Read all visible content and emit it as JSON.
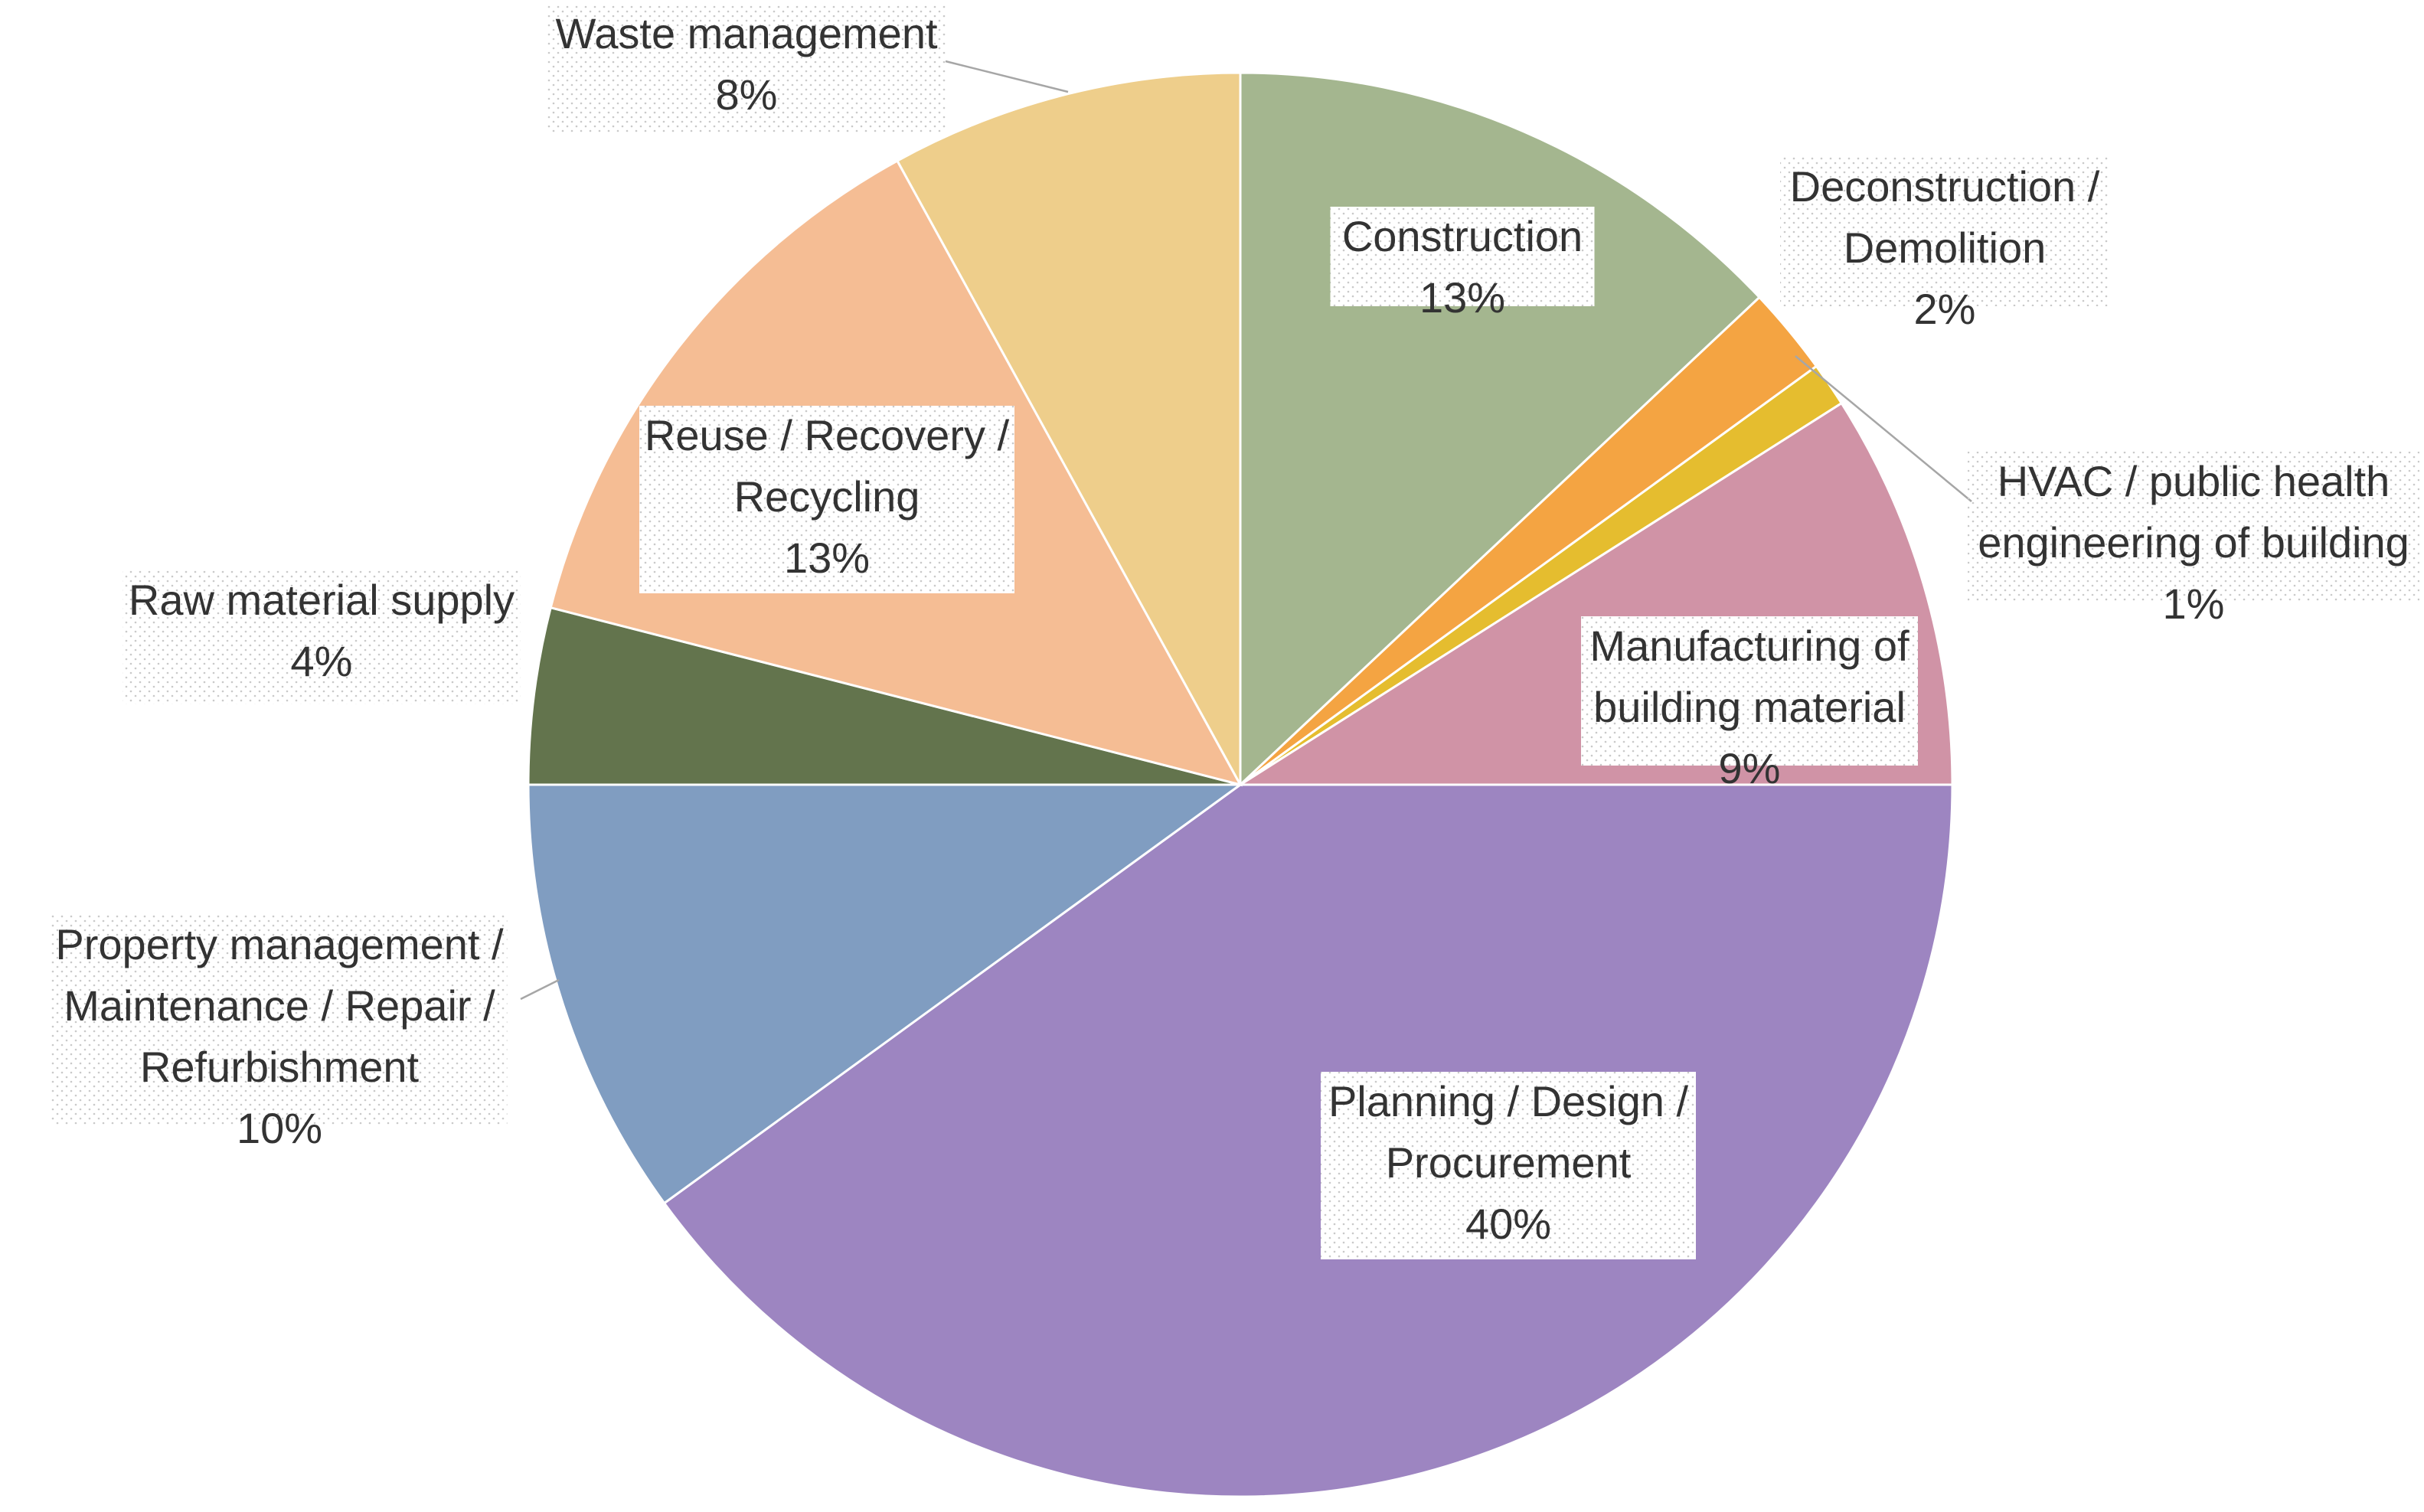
{
  "chart_data": {
    "type": "pie",
    "title": "",
    "start_angle_deg": 0,
    "direction": "clockwise",
    "slices": [
      {
        "name": "Construction",
        "label_lines": [
          "Construction"
        ],
        "value": 13,
        "value_label": "13%",
        "color": "#a4b68f"
      },
      {
        "name": "Deconstruction / Demolition",
        "label_lines": [
          "Deconstruction /",
          "Demolition"
        ],
        "value": 2,
        "value_label": "2%",
        "color": "#f4a442"
      },
      {
        "name": "HVAC / public health engineering of building",
        "label_lines": [
          "HVAC / public health",
          "engineering of building"
        ],
        "value": 1,
        "value_label": "1%",
        "color": "#e5bd2f"
      },
      {
        "name": "Manufacturing of building material",
        "label_lines": [
          "Manufacturing of",
          "building material"
        ],
        "value": 9,
        "value_label": "9%",
        "color": "#d093a6"
      },
      {
        "name": "Planning / Design / Procurement",
        "label_lines": [
          "Planning / Design /",
          "Procurement"
        ],
        "value": 40,
        "value_label": "40%",
        "color": "#9d85c1"
      },
      {
        "name": "Property management / Maintenance / Repair / Refurbishment",
        "label_lines": [
          "Property management /",
          "Maintenance / Repair /",
          "Refurbishment"
        ],
        "value": 10,
        "value_label": "10%",
        "color": "#809dc1"
      },
      {
        "name": "Raw material supply",
        "label_lines": [
          "Raw material supply"
        ],
        "value": 4,
        "value_label": "4%",
        "color": "#63744d"
      },
      {
        "name": "Reuse / Recovery / Recycling",
        "label_lines": [
          "Reuse / Recovery /",
          "Recycling"
        ],
        "value": 13,
        "value_label": "13%",
        "color": "#f5bd94"
      },
      {
        "name": "Waste management",
        "label_lines": [
          "Waste management"
        ],
        "value": 8,
        "value_label": "8%",
        "color": "#eece8b"
      }
    ]
  }
}
